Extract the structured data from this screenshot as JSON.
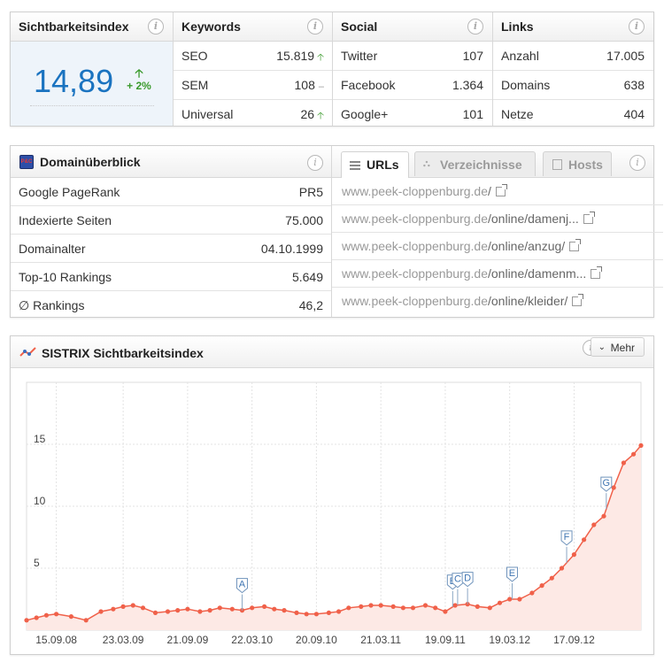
{
  "visibility": {
    "title": "Sichtbarkeitsindex",
    "value": "14,89",
    "change": "+ 2%"
  },
  "keywords": {
    "title": "Keywords",
    "rows": [
      {
        "label": "SEO",
        "value": "15.819",
        "trend": "up"
      },
      {
        "label": "SEM",
        "value": "108",
        "trend": "flat"
      },
      {
        "label": "Universal",
        "value": "26",
        "trend": "up"
      }
    ]
  },
  "social": {
    "title": "Social",
    "rows": [
      {
        "label": "Twitter",
        "value": "107"
      },
      {
        "label": "Facebook",
        "value": "1.364"
      },
      {
        "label": "Google+",
        "value": "101"
      }
    ]
  },
  "links": {
    "title": "Links",
    "rows": [
      {
        "label": "Anzahl",
        "value": "17.005"
      },
      {
        "label": "Domains",
        "value": "638"
      },
      {
        "label": "Netze",
        "value": "404"
      }
    ]
  },
  "domain": {
    "title": "Domainüberblick",
    "logo_text": "P&C",
    "rows": [
      {
        "label": "Google PageRank",
        "value": "PR5"
      },
      {
        "label": "Indexierte Seiten",
        "value": "75.000"
      },
      {
        "label": "Domainalter",
        "value": "04.10.1999"
      },
      {
        "label": "Top-10 Rankings",
        "value": "5.649"
      },
      {
        "label": "∅ Rankings",
        "value": "46,2"
      }
    ]
  },
  "url_tabs": {
    "tabs": [
      "URLs",
      "Verzeichnisse",
      "Hosts"
    ],
    "active": "URLs",
    "urls": [
      {
        "host": "www.peek-cloppenburg.de",
        "path": "/"
      },
      {
        "host": "www.peek-cloppenburg.de",
        "path": "/online/damenj..."
      },
      {
        "host": "www.peek-cloppenburg.de",
        "path": "/online/anzug/"
      },
      {
        "host": "www.peek-cloppenburg.de",
        "path": "/online/damenm..."
      },
      {
        "host": "www.peek-cloppenburg.de",
        "path": "/online/kleider/"
      }
    ]
  },
  "chart_panel": {
    "title": "SISTRIX Sichtbarkeitsindex",
    "more_button": "Mehr"
  },
  "colors": {
    "accent_blue": "#1a73c0",
    "series": "#f0614a",
    "fill": "#fde9e5",
    "up_green": "#3a9a2c"
  },
  "chart_data": {
    "type": "area",
    "title": "",
    "xlabel": "",
    "ylabel": "",
    "ylim": [
      0,
      20
    ],
    "yticks": [
      5,
      10,
      15
    ],
    "xlim": [
      "2008-06-23",
      "2013-03-25"
    ],
    "xticks": [
      "15.09.08",
      "23.03.09",
      "21.09.09",
      "22.03.10",
      "20.09.10",
      "21.03.11",
      "19.09.11",
      "19.03.12",
      "17.09.12"
    ],
    "grid": true,
    "series": [
      {
        "x": [
          "2008-06-23",
          "2008-07-21",
          "2008-08-18",
          "2008-09-15",
          "2008-10-27",
          "2008-12-08",
          "2009-01-19",
          "2009-02-23",
          "2009-03-23",
          "2009-04-20",
          "2009-05-18",
          "2009-06-22",
          "2009-07-27",
          "2009-08-24",
          "2009-09-21",
          "2009-10-26",
          "2009-11-23",
          "2009-12-21",
          "2010-01-25",
          "2010-02-22",
          "2010-03-22",
          "2010-04-26",
          "2010-05-24",
          "2010-06-21",
          "2010-07-26",
          "2010-08-23",
          "2010-09-20",
          "2010-10-25",
          "2010-11-22",
          "2010-12-20",
          "2011-01-24",
          "2011-02-21",
          "2011-03-21",
          "2011-04-25",
          "2011-05-23",
          "2011-06-20",
          "2011-07-25",
          "2011-08-22",
          "2011-09-19",
          "2011-10-17",
          "2011-11-21",
          "2011-12-19",
          "2012-01-23",
          "2012-02-20",
          "2012-03-19",
          "2012-04-16",
          "2012-05-21",
          "2012-06-18",
          "2012-07-16",
          "2012-08-13",
          "2012-09-17",
          "2012-10-15",
          "2012-11-12",
          "2012-12-10",
          "2013-01-07",
          "2013-02-04",
          "2013-03-04",
          "2013-03-25"
        ],
        "values": [
          0.8,
          1.0,
          1.2,
          1.3,
          1.1,
          0.8,
          1.5,
          1.7,
          1.9,
          2.0,
          1.8,
          1.4,
          1.5,
          1.6,
          1.7,
          1.5,
          1.6,
          1.8,
          1.7,
          1.6,
          1.8,
          1.9,
          1.7,
          1.6,
          1.4,
          1.3,
          1.3,
          1.4,
          1.5,
          1.8,
          1.9,
          2.0,
          2.0,
          1.9,
          1.8,
          1.8,
          2.0,
          1.8,
          1.5,
          2.0,
          2.1,
          1.9,
          1.8,
          2.2,
          2.5,
          2.5,
          3.0,
          3.6,
          4.2,
          5.0,
          6.1,
          7.3,
          8.5,
          9.2,
          11.5,
          13.5,
          14.2,
          14.9
        ]
      }
    ],
    "events": [
      {
        "label": "A",
        "x": "2010-02-22"
      },
      {
        "label": "B",
        "x": "2011-10-10"
      },
      {
        "label": "C",
        "x": "2011-10-24"
      },
      {
        "label": "D",
        "x": "2011-11-21"
      },
      {
        "label": "E",
        "x": "2012-03-26"
      },
      {
        "label": "F",
        "x": "2012-08-27"
      },
      {
        "label": "G",
        "x": "2012-12-17"
      }
    ]
  }
}
